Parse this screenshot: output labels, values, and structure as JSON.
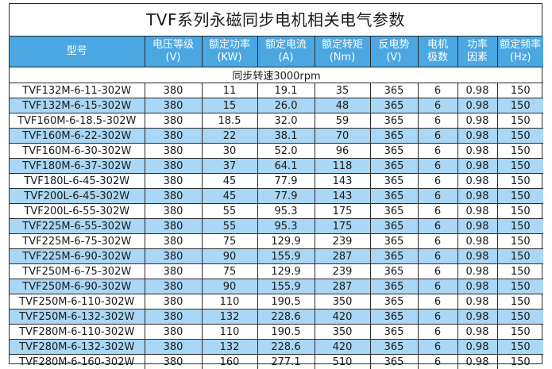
{
  "title": "TVF系列永磁同步电机相关电气参数",
  "headers": [
    {
      "line1": "型号",
      "line2": ""
    },
    {
      "line1": "电压等级",
      "line2": "(V)"
    },
    {
      "line1": "额定功率",
      "line2": "(KW)"
    },
    {
      "line1": "额定电流",
      "line2": "(A)"
    },
    {
      "line1": "额定转矩",
      "line2": "(Nm)"
    },
    {
      "line1": "反电势",
      "line2": "(V)"
    },
    {
      "line1": "电机",
      "line2": "极数"
    },
    {
      "line1": "功率",
      "line2": "因素"
    },
    {
      "line1": "额定频率",
      "line2": "(Hz)"
    }
  ],
  "section_label": "同步转速3000rpm",
  "colors": {
    "header_bg": "#4aa7e2",
    "row_alt_bg": "#a9d7f5",
    "border": "#2a2a2a"
  },
  "rows": [
    [
      "TVF132M-6-11-302W",
      "380",
      "11",
      "19.1",
      "35",
      "365",
      "6",
      "0.98",
      "150"
    ],
    [
      "TVF132M-6-15-302W",
      "380",
      "15",
      "26.0",
      "48",
      "365",
      "6",
      "0.98",
      "150"
    ],
    [
      "TVF160M-6-18.5-302W",
      "380",
      "18.5",
      "32.0",
      "59",
      "365",
      "6",
      "0.98",
      "150"
    ],
    [
      "TVF160M-6-22-302W",
      "380",
      "22",
      "38.1",
      "70",
      "365",
      "6",
      "0.98",
      "150"
    ],
    [
      "TVF160M-6-30-302W",
      "380",
      "30",
      "52.0",
      "96",
      "365",
      "6",
      "0.98",
      "150"
    ],
    [
      "TVF180M-6-37-302W",
      "380",
      "37",
      "64.1",
      "118",
      "365",
      "6",
      "0.98",
      "150"
    ],
    [
      "TVF180L-6-45-302W",
      "380",
      "45",
      "77.9",
      "143",
      "365",
      "6",
      "0.98",
      "150"
    ],
    [
      "TVF200L-6-45-302W",
      "380",
      "45",
      "77.9",
      "143",
      "365",
      "6",
      "0.98",
      "150"
    ],
    [
      "TVF200L-6-55-302W",
      "380",
      "55",
      "95.3",
      "175",
      "365",
      "6",
      "0.98",
      "150"
    ],
    [
      "TVF225M-6-55-302W",
      "380",
      "55",
      "95.3",
      "175",
      "365",
      "6",
      "0.98",
      "150"
    ],
    [
      "TVF225M-6-75-302W",
      "380",
      "75",
      "129.9",
      "239",
      "365",
      "6",
      "0.98",
      "150"
    ],
    [
      "TVF225M-6-90-302W",
      "380",
      "90",
      "155.9",
      "287",
      "365",
      "6",
      "0.98",
      "150"
    ],
    [
      "TVF250M-6-75-302W",
      "380",
      "75",
      "129.9",
      "239",
      "365",
      "6",
      "0.98",
      "150"
    ],
    [
      "TVF250M-6-90-302W",
      "380",
      "90",
      "155.9",
      "287",
      "365",
      "6",
      "0.98",
      "150"
    ],
    [
      "TVF250M-6-110-302W",
      "380",
      "110",
      "190.5",
      "350",
      "365",
      "6",
      "0.98",
      "150"
    ],
    [
      "TVF250M-6-132-302W",
      "380",
      "132",
      "228.6",
      "420",
      "365",
      "6",
      "0.98",
      "150"
    ],
    [
      "TVF280M-6-110-302W",
      "380",
      "110",
      "190.5",
      "350",
      "365",
      "6",
      "0.98",
      "150"
    ],
    [
      "TVF280M-6-132-302W",
      "380",
      "132",
      "228.6",
      "420",
      "365",
      "6",
      "0.98",
      "150"
    ],
    [
      "TVF280M-6-160-302W",
      "380",
      "160",
      "277.1",
      "510",
      "365",
      "6",
      "0.98",
      "150"
    ]
  ]
}
